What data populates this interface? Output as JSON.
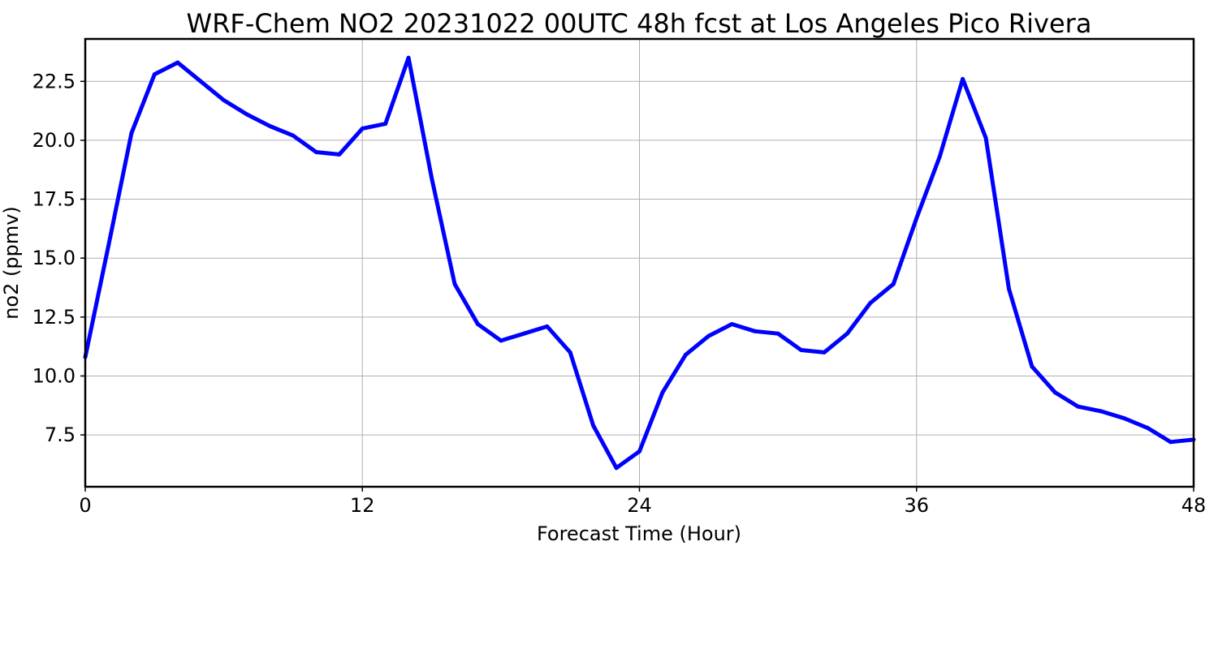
{
  "chart_data": {
    "type": "line",
    "title": "WRF-Chem NO2  20231022 00UTC 48h fcst at Los Angeles Pico Rivera",
    "xlabel": "Forecast Time (Hour)",
    "ylabel": "no2  (ppmv)",
    "xlim": [
      0,
      48
    ],
    "ylim": [
      5.3,
      24.3
    ],
    "xticks": [
      0,
      12,
      24,
      36,
      48
    ],
    "xtick_labels": [
      "0",
      "12",
      "24",
      "36",
      "48"
    ],
    "yticks": [
      7.5,
      10.0,
      12.5,
      15.0,
      17.5,
      20.0,
      22.5
    ],
    "ytick_labels": [
      "7.5",
      "10.0",
      "12.5",
      "15.0",
      "17.5",
      "20.0",
      "22.5"
    ],
    "grid": true,
    "series": [
      {
        "color": "#0000ff",
        "x": [
          0,
          1,
          2,
          3,
          4,
          5,
          6,
          7,
          8,
          9,
          10,
          11,
          12,
          13,
          14,
          15,
          16,
          17,
          18,
          19,
          20,
          21,
          22,
          23,
          24,
          25,
          26,
          27,
          28,
          29,
          30,
          31,
          32,
          33,
          34,
          35,
          36,
          37,
          38,
          39,
          40,
          41,
          42,
          43,
          44,
          45,
          46,
          47,
          48
        ],
        "values": [
          10.8,
          15.5,
          20.3,
          22.8,
          23.3,
          22.5,
          21.7,
          21.1,
          20.6,
          20.2,
          19.5,
          19.4,
          20.5,
          20.7,
          23.5,
          18.4,
          13.9,
          12.2,
          11.5,
          11.8,
          12.1,
          11.0,
          7.9,
          6.1,
          6.8,
          9.3,
          10.9,
          11.7,
          12.2,
          11.9,
          11.8,
          11.1,
          11.0,
          11.8,
          13.1,
          13.9,
          16.7,
          19.3,
          22.6,
          20.1,
          13.7,
          10.4,
          9.3,
          8.7,
          8.5,
          8.2,
          7.8,
          7.2,
          7.3
        ]
      }
    ]
  }
}
